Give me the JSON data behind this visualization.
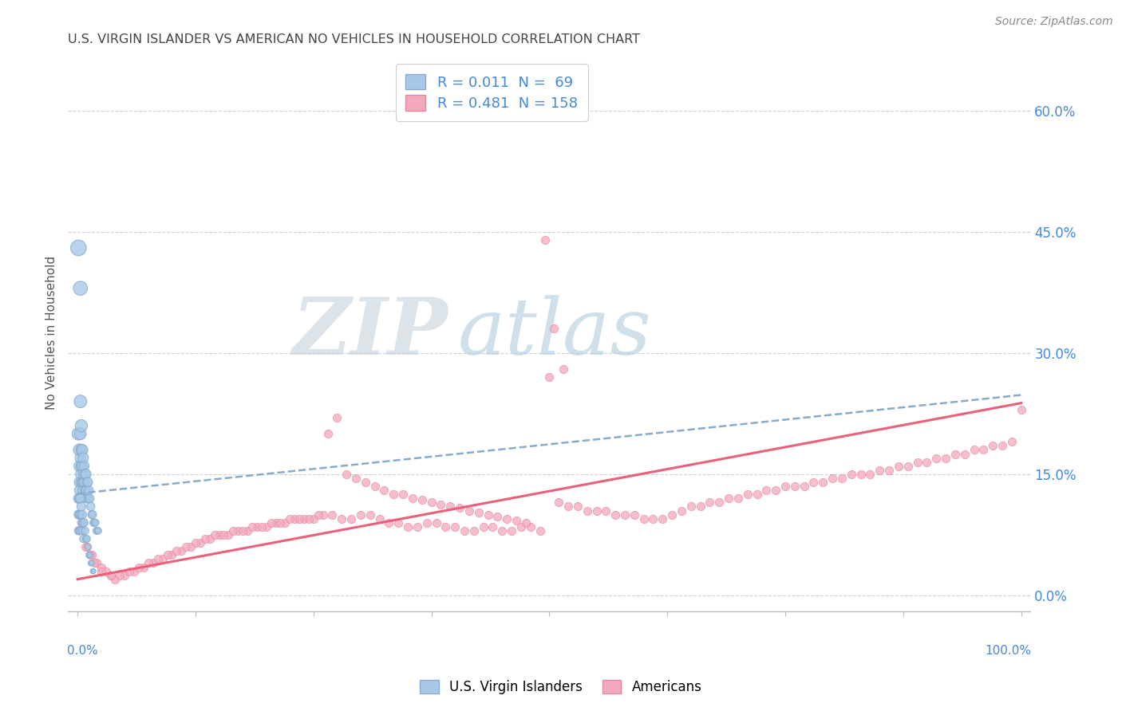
{
  "title": "U.S. VIRGIN ISLANDER VS AMERICAN NO VEHICLES IN HOUSEHOLD CORRELATION CHART",
  "source": "Source: ZipAtlas.com",
  "ylabel": "No Vehicles in Household",
  "legend_blue_r": "R = 0.011",
  "legend_blue_n": "N =  69",
  "legend_pink_r": "R = 0.481",
  "legend_pink_n": "N = 158",
  "legend_label_blue": "U.S. Virgin Islanders",
  "legend_label_pink": "Americans",
  "blue_color": "#a8c8e8",
  "pink_color": "#f4a8bc",
  "blue_edge_color": "#88aacc",
  "pink_edge_color": "#e888a0",
  "blue_line_color": "#88aacc",
  "pink_line_color": "#e8607a",
  "axis_color": "#bbbbbb",
  "grid_color": "#cccccc",
  "label_color": "#4488dd",
  "blue_line_y_start": 0.126,
  "blue_line_y_end": 0.248,
  "pink_line_y_start": 0.02,
  "pink_line_y_end": 0.238,
  "xlim": [
    -0.01,
    1.01
  ],
  "ylim": [
    -0.02,
    0.67
  ],
  "yticks": [
    0.0,
    0.15,
    0.3,
    0.45,
    0.6
  ],
  "ytick_labels": [
    "0.0%",
    "15.0%",
    "30.0%",
    "45.0%",
    "60.0%"
  ],
  "xticks": [
    0.0,
    0.125,
    0.25,
    0.375,
    0.5,
    0.625,
    0.75,
    0.875,
    1.0
  ],
  "blue_x": [
    0.001,
    0.001,
    0.002,
    0.002,
    0.002,
    0.002,
    0.003,
    0.003,
    0.003,
    0.003,
    0.003,
    0.004,
    0.004,
    0.004,
    0.004,
    0.005,
    0.005,
    0.005,
    0.005,
    0.006,
    0.006,
    0.006,
    0.007,
    0.007,
    0.008,
    0.008,
    0.009,
    0.009,
    0.01,
    0.01,
    0.011,
    0.011,
    0.012,
    0.013,
    0.014,
    0.015,
    0.016,
    0.017,
    0.018,
    0.019,
    0.02,
    0.021,
    0.022,
    0.001,
    0.001,
    0.001,
    0.002,
    0.002,
    0.002,
    0.003,
    0.003,
    0.003,
    0.004,
    0.004,
    0.005,
    0.005,
    0.006,
    0.006,
    0.007,
    0.008,
    0.009,
    0.01,
    0.011,
    0.012,
    0.013,
    0.014,
    0.015,
    0.016,
    0.017
  ],
  "blue_y": [
    0.43,
    0.2,
    0.18,
    0.16,
    0.14,
    0.13,
    0.38,
    0.24,
    0.2,
    0.17,
    0.15,
    0.21,
    0.18,
    0.16,
    0.14,
    0.18,
    0.16,
    0.14,
    0.13,
    0.17,
    0.15,
    0.14,
    0.16,
    0.14,
    0.15,
    0.13,
    0.15,
    0.13,
    0.14,
    0.12,
    0.14,
    0.12,
    0.13,
    0.12,
    0.11,
    0.1,
    0.1,
    0.09,
    0.09,
    0.09,
    0.08,
    0.08,
    0.08,
    0.12,
    0.1,
    0.08,
    0.12,
    0.1,
    0.08,
    0.12,
    0.1,
    0.08,
    0.11,
    0.09,
    0.1,
    0.08,
    0.09,
    0.07,
    0.09,
    0.08,
    0.07,
    0.07,
    0.06,
    0.05,
    0.05,
    0.04,
    0.04,
    0.03,
    0.03
  ],
  "blue_size": [
    200,
    130,
    120,
    100,
    90,
    80,
    160,
    130,
    110,
    90,
    80,
    120,
    100,
    90,
    80,
    100,
    90,
    80,
    70,
    90,
    80,
    70,
    80,
    70,
    80,
    70,
    80,
    70,
    75,
    65,
    70,
    60,
    65,
    60,
    55,
    50,
    50,
    45,
    45,
    40,
    40,
    38,
    35,
    80,
    65,
    55,
    75,
    60,
    50,
    70,
    55,
    45,
    65,
    50,
    60,
    48,
    55,
    43,
    50,
    45,
    40,
    38,
    35,
    30,
    28,
    25,
    22,
    20,
    18
  ],
  "pink_x": [
    0.002,
    0.005,
    0.01,
    0.015,
    0.02,
    0.025,
    0.03,
    0.035,
    0.04,
    0.05,
    0.06,
    0.07,
    0.08,
    0.09,
    0.1,
    0.11,
    0.12,
    0.13,
    0.14,
    0.15,
    0.16,
    0.17,
    0.18,
    0.19,
    0.2,
    0.21,
    0.22,
    0.23,
    0.24,
    0.25,
    0.26,
    0.27,
    0.28,
    0.29,
    0.3,
    0.31,
    0.32,
    0.33,
    0.34,
    0.35,
    0.36,
    0.37,
    0.38,
    0.39,
    0.4,
    0.41,
    0.42,
    0.43,
    0.44,
    0.45,
    0.46,
    0.47,
    0.48,
    0.49,
    0.5,
    0.51,
    0.52,
    0.53,
    0.54,
    0.55,
    0.56,
    0.57,
    0.58,
    0.59,
    0.6,
    0.61,
    0.62,
    0.63,
    0.64,
    0.65,
    0.66,
    0.67,
    0.68,
    0.69,
    0.7,
    0.71,
    0.72,
    0.73,
    0.74,
    0.75,
    0.76,
    0.77,
    0.78,
    0.79,
    0.8,
    0.81,
    0.82,
    0.83,
    0.84,
    0.85,
    0.86,
    0.87,
    0.88,
    0.89,
    0.9,
    0.91,
    0.92,
    0.93,
    0.94,
    0.95,
    0.96,
    0.97,
    0.98,
    0.99,
    1.0,
    0.003,
    0.008,
    0.013,
    0.018,
    0.025,
    0.035,
    0.045,
    0.055,
    0.065,
    0.075,
    0.085,
    0.095,
    0.105,
    0.115,
    0.125,
    0.135,
    0.145,
    0.155,
    0.165,
    0.175,
    0.185,
    0.195,
    0.205,
    0.215,
    0.225,
    0.235,
    0.245,
    0.255,
    0.265,
    0.275,
    0.285,
    0.295,
    0.305,
    0.315,
    0.325,
    0.335,
    0.345,
    0.355,
    0.365,
    0.375,
    0.385,
    0.395,
    0.405,
    0.415,
    0.425,
    0.435,
    0.445,
    0.455,
    0.465,
    0.475,
    0.495,
    0.505,
    0.515
  ],
  "pink_y": [
    0.14,
    0.09,
    0.06,
    0.05,
    0.04,
    0.035,
    0.03,
    0.025,
    0.02,
    0.025,
    0.03,
    0.035,
    0.04,
    0.045,
    0.05,
    0.055,
    0.06,
    0.065,
    0.07,
    0.075,
    0.075,
    0.08,
    0.08,
    0.085,
    0.085,
    0.09,
    0.09,
    0.095,
    0.095,
    0.095,
    0.1,
    0.1,
    0.095,
    0.095,
    0.1,
    0.1,
    0.095,
    0.09,
    0.09,
    0.085,
    0.085,
    0.09,
    0.09,
    0.085,
    0.085,
    0.08,
    0.08,
    0.085,
    0.085,
    0.08,
    0.08,
    0.085,
    0.085,
    0.08,
    0.27,
    0.115,
    0.11,
    0.11,
    0.105,
    0.105,
    0.105,
    0.1,
    0.1,
    0.1,
    0.095,
    0.095,
    0.095,
    0.1,
    0.105,
    0.11,
    0.11,
    0.115,
    0.115,
    0.12,
    0.12,
    0.125,
    0.125,
    0.13,
    0.13,
    0.135,
    0.135,
    0.135,
    0.14,
    0.14,
    0.145,
    0.145,
    0.15,
    0.15,
    0.15,
    0.155,
    0.155,
    0.16,
    0.16,
    0.165,
    0.165,
    0.17,
    0.17,
    0.175,
    0.175,
    0.18,
    0.18,
    0.185,
    0.185,
    0.19,
    0.23,
    0.18,
    0.06,
    0.05,
    0.04,
    0.03,
    0.025,
    0.025,
    0.03,
    0.035,
    0.04,
    0.045,
    0.05,
    0.055,
    0.06,
    0.065,
    0.07,
    0.075,
    0.075,
    0.08,
    0.08,
    0.085,
    0.085,
    0.09,
    0.09,
    0.095,
    0.095,
    0.095,
    0.1,
    0.2,
    0.22,
    0.15,
    0.145,
    0.14,
    0.135,
    0.13,
    0.125,
    0.125,
    0.12,
    0.118,
    0.115,
    0.112,
    0.11,
    0.108,
    0.105,
    0.103,
    0.1,
    0.098,
    0.095,
    0.093,
    0.09,
    0.44,
    0.33,
    0.28
  ],
  "pink_size_uniform": 55,
  "watermark_zip_color": "#c0ccd8",
  "watermark_atlas_color": "#a8c4d8"
}
